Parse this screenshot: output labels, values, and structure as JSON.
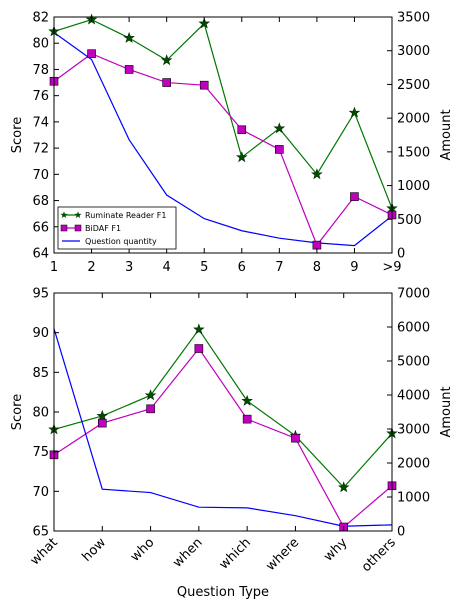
{
  "colors": {
    "ruminate": "#007700",
    "ruminate_marker": "#004d00",
    "bidaf": "#c000c0",
    "quantity": "#0000ff"
  },
  "chart_data": [
    {
      "type": "line",
      "categories": [
        "1",
        "2",
        "3",
        "4",
        "5",
        "6",
        "7",
        "8",
        "9",
        ">9"
      ],
      "ylabel": "Score",
      "y2label": "Amount",
      "ylim": [
        64,
        82
      ],
      "yticks": [
        64,
        66,
        68,
        70,
        72,
        74,
        76,
        78,
        80,
        82
      ],
      "y2lim": [
        0,
        3500
      ],
      "y2ticks": [
        0,
        500,
        1000,
        1500,
        2000,
        2500,
        3000,
        3500
      ],
      "legend": {
        "position": "lower-left",
        "entries": [
          "Ruminate Reader F1",
          "BiDAF F1",
          "Question quantity"
        ]
      },
      "series": [
        {
          "name": "Ruminate Reader F1",
          "axis": "left",
          "marker": "star",
          "color": "ruminate",
          "values": [
            80.9,
            81.8,
            80.4,
            78.7,
            81.5,
            71.3,
            73.5,
            70.0,
            74.7,
            67.4
          ]
        },
        {
          "name": "BiDAF F1",
          "axis": "left",
          "marker": "square",
          "color": "bidaf",
          "values": [
            77.1,
            79.2,
            78.0,
            77.0,
            76.8,
            73.4,
            71.9,
            64.6,
            68.3,
            66.9
          ]
        },
        {
          "name": "Question quantity",
          "axis": "right",
          "marker": "none",
          "color": "quantity",
          "values": [
            3270,
            2870,
            1680,
            860,
            510,
            330,
            220,
            150,
            110,
            550
          ]
        }
      ]
    },
    {
      "type": "line",
      "categories": [
        "what",
        "how",
        "who",
        "when",
        "which",
        "where",
        "why",
        "others"
      ],
      "xlabel": "Question Type",
      "ylabel": "Score",
      "y2label": "Amount",
      "ylim": [
        65,
        95
      ],
      "yticks": [
        65,
        70,
        75,
        80,
        85,
        90,
        95
      ],
      "y2lim": [
        0,
        7000
      ],
      "y2ticks": [
        0,
        1000,
        2000,
        3000,
        4000,
        5000,
        6000,
        7000
      ],
      "series": [
        {
          "name": "Ruminate Reader F1",
          "axis": "left",
          "marker": "star",
          "color": "ruminate",
          "values": [
            77.8,
            79.5,
            82.1,
            90.4,
            81.4,
            77.0,
            70.5,
            77.3
          ]
        },
        {
          "name": "BiDAF F1",
          "axis": "left",
          "marker": "square",
          "color": "bidaf",
          "values": [
            74.6,
            78.6,
            80.4,
            88.0,
            79.1,
            76.7,
            65.5,
            70.7
          ]
        },
        {
          "name": "Question quantity",
          "axis": "right",
          "marker": "none",
          "color": "quantity",
          "values": [
            5950,
            1230,
            1130,
            700,
            680,
            450,
            140,
            180
          ]
        }
      ]
    }
  ]
}
